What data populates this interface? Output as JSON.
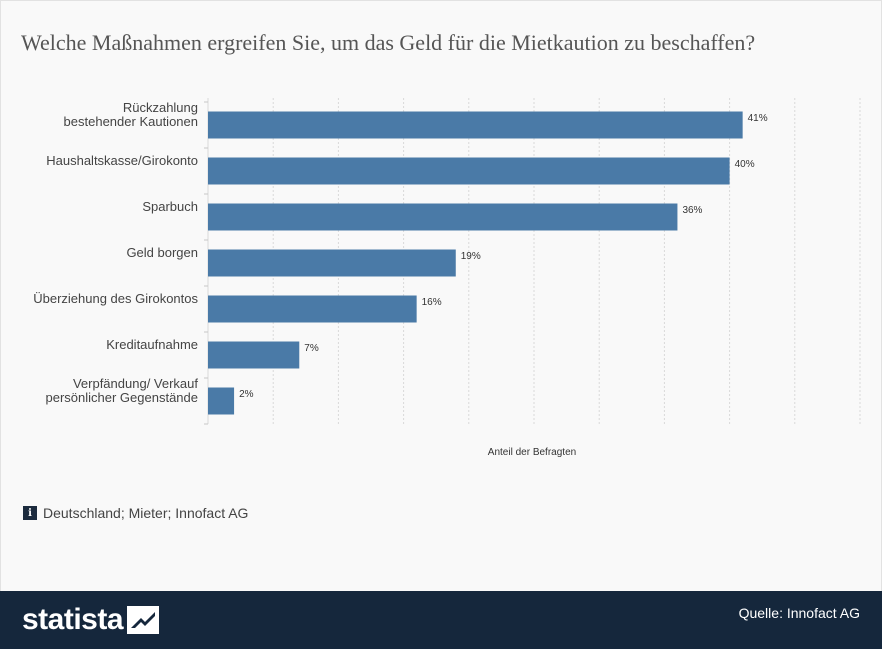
{
  "title": "Welche Maßnahmen ergreifen Sie, um das Geld für die Mietkaution zu beschaffen?",
  "info_text": "Deutschland; Mieter; Innofact AG",
  "footer": {
    "logo_text": "statista",
    "source": "Quelle: Innofact AG"
  },
  "colors": {
    "bar": "#4a7aa7",
    "grid": "#d9d9d9",
    "footer_bg": "#15273c"
  },
  "chart_data": {
    "type": "bar",
    "orientation": "horizontal",
    "categories": [
      [
        "Rückzahlung",
        "bestehender Kautionen"
      ],
      [
        "Haushaltskasse/Girokonto"
      ],
      [
        "Sparbuch"
      ],
      [
        "Geld borgen"
      ],
      [
        "Überziehung des Girokontos"
      ],
      [
        "Kreditaufnahme"
      ],
      [
        "Verpfändung/ Verkauf",
        "persönlicher Gegenstände"
      ]
    ],
    "values": [
      41,
      40,
      36,
      19,
      16,
      7,
      2
    ],
    "value_labels": [
      "41%",
      "40%",
      "36%",
      "19%",
      "16%",
      "7%",
      "2%"
    ],
    "xlabel": "Anteil der Befragten",
    "xlim": [
      0,
      50
    ],
    "grid": true
  }
}
